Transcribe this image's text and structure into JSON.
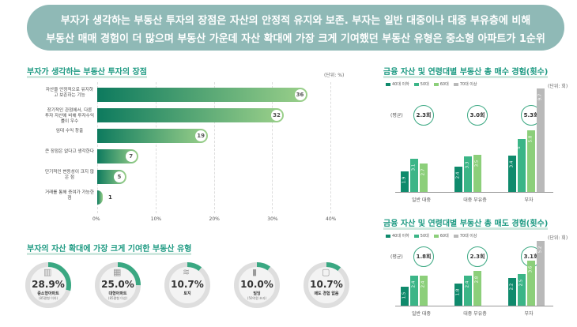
{
  "banner": {
    "line1": "부자가 생각하는 부동산 투자의 장점은 자산의 안정적 유지와 보존. 부자는 일반 대중이나 대중 부유층에 비해",
    "line2": "부동산 매매 경험이 더 많으며 부동산 가운데 자산 확대에 가장 크게 기여했던 부동산 유형은 중소형 아파트가 1순위"
  },
  "left_chart": {
    "title": "부자가 생각하는 부동산 투자의 장점",
    "unit": "(단위: %)",
    "axis_ticks": [
      "0%",
      "10%",
      "20%",
      "30%",
      "40%"
    ]
  },
  "pie_section": {
    "title": "부자의 자산 확대에 가장 크게 기여한 부동산 유형"
  },
  "buy_chart": {
    "title": "금융 자산 및 연령대별 부동산 총 매수 경험(횟수)",
    "unit": "(단위: 회)",
    "avg_label": "(평균)"
  },
  "sell_chart": {
    "title": "금융 자산 및 연령대별 부동산 총 매도 경험(횟수)",
    "unit": "(단위: 회)",
    "avg_label": "(평균)"
  },
  "colors": {
    "accent": "#1d9a82",
    "banner": "#8fb9b6",
    "age40": "#0f8a6c",
    "age50": "#3bb587",
    "age60": "#8ccf7a",
    "age70": "#b9b9b9"
  },
  "chart_data": [
    {
      "type": "bar",
      "orientation": "horizontal",
      "title": "부자가 생각하는 부동산 투자의 장점",
      "categories": [
        "자산을 안정적으로 유지하고 보존하는 기능",
        "장기적인 관점에서, 다른 투자 자산에 비해 투자수익률이 우수",
        "임대 수익 창출",
        "큰 장점은 없다고 생각한다",
        "단기적인 변동성이 크지 않은 점",
        "거래를 통해 증여가 가능한 점"
      ],
      "values": [
        36,
        32,
        19,
        7,
        5,
        1
      ],
      "xlim": [
        0,
        40
      ]
    },
    {
      "type": "pie",
      "title": "부자의 자산 확대에 가장 크게 기여한 부동산 유형",
      "categories": [
        "중소형아파트",
        "대형아파트",
        "토지",
        "빌딩",
        "매도 경험 없음"
      ],
      "sublabels": [
        "(85평형 이하)",
        "(85평형 이상)",
        "",
        "(50억원 초과)",
        ""
      ],
      "values": [
        28.9,
        25.0,
        10.7,
        10.0,
        10.7
      ],
      "labels": [
        "28.9%",
        "25.0%",
        "10.7%",
        "10.0%",
        "10.7%"
      ]
    },
    {
      "type": "bar",
      "title": "금융 자산 및 연령대별 부동산 총 매수 경험(횟수)",
      "categories": [
        "일반 대중",
        "대중 부유층",
        "부자"
      ],
      "averages": [
        "2.3회",
        "3.0회",
        "5.3회"
      ],
      "series": [
        {
          "name": "40대 이하",
          "values": [
            1.9,
            2.4,
            3.4
          ]
        },
        {
          "name": "50대",
          "values": [
            3.1,
            3.3,
            5.0
          ]
        },
        {
          "name": "60대",
          "values": [
            2.7,
            3.5,
            5.8
          ]
        },
        {
          "name": "70대 이상",
          "values": [
            null,
            null,
            9.7
          ]
        }
      ],
      "ylim": [
        0,
        10
      ]
    },
    {
      "type": "bar",
      "title": "금융 자산 및 연령대별 부동산 총 매도 경험(횟수)",
      "categories": [
        "일반 대중",
        "대중 부유층",
        "부자"
      ],
      "averages": [
        "1.8회",
        "2.3회",
        "3.1회"
      ],
      "series": [
        {
          "name": "40대 이하",
          "values": [
            1.5,
            1.8,
            2.2
          ]
        },
        {
          "name": "50대",
          "values": [
            2.4,
            2.4,
            2.5
          ]
        },
        {
          "name": "60대",
          "values": [
            2.4,
            2.8,
            3.6
          ]
        },
        {
          "name": "70대 이상",
          "values": [
            null,
            null,
            5.2
          ]
        }
      ],
      "ylim": [
        0,
        6
      ]
    }
  ]
}
